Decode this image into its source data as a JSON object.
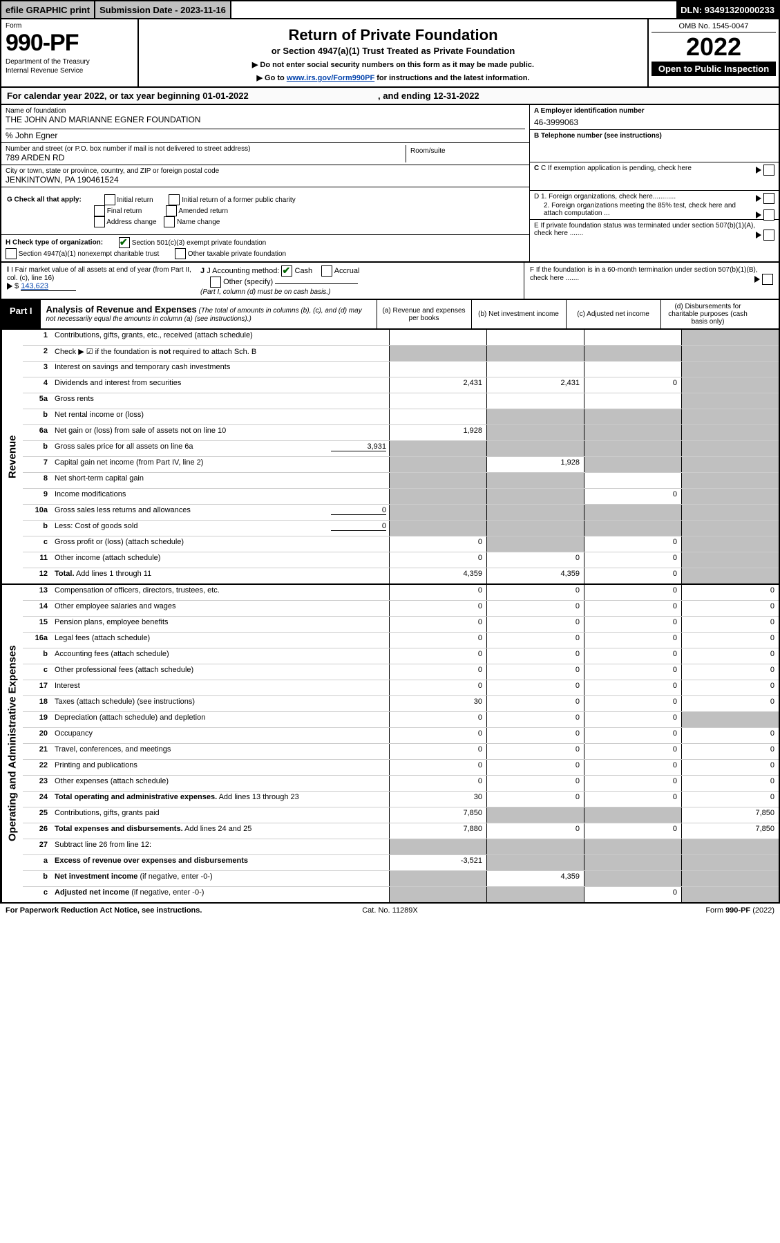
{
  "top": {
    "efile": "efile GRAPHIC print",
    "subdate_label": "Submission Date - 2023-11-16",
    "dln": "DLN: 93491320000233"
  },
  "header": {
    "form_label": "Form",
    "form_no": "990-PF",
    "dept": "Department of the Treasury",
    "irs": "Internal Revenue Service",
    "title": "Return of Private Foundation",
    "subtitle": "or Section 4947(a)(1) Trust Treated as Private Foundation",
    "instr1": "▶ Do not enter social security numbers on this form as it may be made public.",
    "instr2_pre": "▶ Go to ",
    "instr2_link": "www.irs.gov/Form990PF",
    "instr2_post": " for instructions and the latest information.",
    "omb": "OMB No. 1545-0047",
    "year": "2022",
    "open": "Open to Public Inspection"
  },
  "cal": {
    "text_pre": "For calendar year 2022, or tax year beginning ",
    "begin": "01-01-2022",
    "text_mid": " , and ending ",
    "end": "12-31-2022"
  },
  "entity": {
    "name_label": "Name of foundation",
    "name": "THE JOHN AND MARIANNE EGNER FOUNDATION",
    "care_of": "% John Egner",
    "addr_label": "Number and street (or P.O. box number if mail is not delivered to street address)",
    "addr": "789 ARDEN RD",
    "room_label": "Room/suite",
    "city_label": "City or town, state or province, country, and ZIP or foreign postal code",
    "city": "JENKINTOWN, PA  190461524",
    "ein_label": "A Employer identification number",
    "ein": "46-3999063",
    "phone_label": "B Telephone number (see instructions)",
    "c_label": "C If exemption application is pending, check here",
    "d1": "D 1. Foreign organizations, check here............",
    "d2": "2. Foreign organizations meeting the 85% test, check here and attach computation ...",
    "e": "E  If private foundation status was terminated under section 507(b)(1)(A), check here .......",
    "f": "F  If the foundation is in a 60-month termination under section 507(b)(1)(B), check here .......",
    "g_label": "G Check all that apply:",
    "g_opts": [
      "Initial return",
      "Initial return of a former public charity",
      "Final return",
      "Amended return",
      "Address change",
      "Name change"
    ],
    "h_label": "H Check type of organization:",
    "h_opt1": "Section 501(c)(3) exempt private foundation",
    "h_opt2": "Section 4947(a)(1) nonexempt charitable trust",
    "h_opt3": "Other taxable private foundation",
    "i_label": "I Fair market value of all assets at end of year (from Part II, col. (c), line 16)",
    "i_val": "143,623",
    "j_label": "J Accounting method:",
    "j_cash": "Cash",
    "j_accrual": "Accrual",
    "j_other": "Other (specify)",
    "j_note": "(Part I, column (d) must be on cash basis.)"
  },
  "part1": {
    "tab": "Part I",
    "title": "Analysis of Revenue and Expenses",
    "note": " (The total of amounts in columns (b), (c), and (d) may not necessarily equal the amounts in column (a) (see instructions).)",
    "cols": {
      "a": "(a) Revenue and expenses per books",
      "b": "(b) Net investment income",
      "c": "(c) Adjusted net income",
      "d": "(d) Disbursements for charitable purposes (cash basis only)"
    }
  },
  "sections": {
    "revenue": "Revenue",
    "expenses": "Operating and Administrative Expenses"
  },
  "rows": [
    {
      "ln": "1",
      "desc": "Contributions, gifts, grants, etc., received (attach schedule)",
      "a": "",
      "b": "",
      "c": "",
      "d": "",
      "d_shade": true,
      "c_shade": false
    },
    {
      "ln": "2",
      "desc": "Check ▶ ☑ if the foundation is <b>not</b> required to attach Sch. B",
      "a": "",
      "b": "",
      "c": "",
      "d": "",
      "all_shade_right": true
    },
    {
      "ln": "3",
      "desc": "Interest on savings and temporary cash investments",
      "a": "",
      "b": "",
      "c": "",
      "d": "",
      "d_shade": true
    },
    {
      "ln": "4",
      "desc": "Dividends and interest from securities",
      "a": "2,431",
      "b": "2,431",
      "c": "0",
      "d": "",
      "d_shade": true
    },
    {
      "ln": "5a",
      "desc": "Gross rents",
      "a": "",
      "b": "",
      "c": "",
      "d": "",
      "d_shade": true
    },
    {
      "ln": "b",
      "desc": "Net rental income or (loss)",
      "a": "",
      "b": "",
      "c": "",
      "d": "",
      "bcd_shade": true,
      "inline_box": ""
    },
    {
      "ln": "6a",
      "desc": "Net gain or (loss) from sale of assets not on line 10",
      "a": "1,928",
      "b": "",
      "c": "",
      "d": "",
      "bcd_shade": true
    },
    {
      "ln": "b",
      "desc": "Gross sales price for all assets on line 6a",
      "a": "",
      "b": "",
      "c": "",
      "d": "",
      "bcd_shade": true,
      "a_shade": true,
      "inline_val": "3,931"
    },
    {
      "ln": "7",
      "desc": "Capital gain net income (from Part IV, line 2)",
      "a": "",
      "b": "1,928",
      "c": "",
      "d": "",
      "a_shade": true,
      "c_shade": true,
      "d_shade": true
    },
    {
      "ln": "8",
      "desc": "Net short-term capital gain",
      "a": "",
      "b": "",
      "c": "",
      "d": "",
      "a_shade": true,
      "b_shade": true,
      "d_shade": true
    },
    {
      "ln": "9",
      "desc": "Income modifications",
      "a": "",
      "b": "",
      "c": "0",
      "d": "",
      "a_shade": true,
      "b_shade": true,
      "d_shade": true
    },
    {
      "ln": "10a",
      "desc": "Gross sales less returns and allowances",
      "a": "",
      "b": "",
      "c": "",
      "d": "",
      "bcd_shade": true,
      "a_shade": true,
      "inline_val": "0"
    },
    {
      "ln": "b",
      "desc": "Less: Cost of goods sold",
      "a": "",
      "b": "",
      "c": "",
      "d": "",
      "bcd_shade": true,
      "a_shade": true,
      "inline_val": "0"
    },
    {
      "ln": "c",
      "desc": "Gross profit or (loss) (attach schedule)",
      "a": "0",
      "b": "",
      "c": "0",
      "d": "",
      "b_shade": true,
      "d_shade": true
    },
    {
      "ln": "11",
      "desc": "Other income (attach schedule)",
      "a": "0",
      "b": "0",
      "c": "0",
      "d": "",
      "d_shade": true
    },
    {
      "ln": "12",
      "desc": "<b>Total.</b> Add lines 1 through 11",
      "a": "4,359",
      "b": "4,359",
      "c": "0",
      "d": "",
      "d_shade": true
    }
  ],
  "exp_rows": [
    {
      "ln": "13",
      "desc": "Compensation of officers, directors, trustees, etc.",
      "a": "0",
      "b": "0",
      "c": "0",
      "d": "0"
    },
    {
      "ln": "14",
      "desc": "Other employee salaries and wages",
      "a": "0",
      "b": "0",
      "c": "0",
      "d": "0"
    },
    {
      "ln": "15",
      "desc": "Pension plans, employee benefits",
      "a": "0",
      "b": "0",
      "c": "0",
      "d": "0"
    },
    {
      "ln": "16a",
      "desc": "Legal fees (attach schedule)",
      "a": "0",
      "b": "0",
      "c": "0",
      "d": "0"
    },
    {
      "ln": "b",
      "desc": "Accounting fees (attach schedule)",
      "a": "0",
      "b": "0",
      "c": "0",
      "d": "0"
    },
    {
      "ln": "c",
      "desc": "Other professional fees (attach schedule)",
      "a": "0",
      "b": "0",
      "c": "0",
      "d": "0"
    },
    {
      "ln": "17",
      "desc": "Interest",
      "a": "0",
      "b": "0",
      "c": "0",
      "d": "0"
    },
    {
      "ln": "18",
      "desc": "Taxes (attach schedule) (see instructions)",
      "a": "30",
      "b": "0",
      "c": "0",
      "d": "0"
    },
    {
      "ln": "19",
      "desc": "Depreciation (attach schedule) and depletion",
      "a": "0",
      "b": "0",
      "c": "0",
      "d": "",
      "d_shade": true
    },
    {
      "ln": "20",
      "desc": "Occupancy",
      "a": "0",
      "b": "0",
      "c": "0",
      "d": "0"
    },
    {
      "ln": "21",
      "desc": "Travel, conferences, and meetings",
      "a": "0",
      "b": "0",
      "c": "0",
      "d": "0"
    },
    {
      "ln": "22",
      "desc": "Printing and publications",
      "a": "0",
      "b": "0",
      "c": "0",
      "d": "0"
    },
    {
      "ln": "23",
      "desc": "Other expenses (attach schedule)",
      "a": "0",
      "b": "0",
      "c": "0",
      "d": "0"
    },
    {
      "ln": "24",
      "desc": "<b>Total operating and administrative expenses.</b> Add lines 13 through 23",
      "a": "30",
      "b": "0",
      "c": "0",
      "d": "0"
    },
    {
      "ln": "25",
      "desc": "Contributions, gifts, grants paid",
      "a": "7,850",
      "b": "",
      "c": "",
      "d": "7,850",
      "b_shade": true,
      "c_shade": true
    },
    {
      "ln": "26",
      "desc": "<b>Total expenses and disbursements.</b> Add lines 24 and 25",
      "a": "7,880",
      "b": "0",
      "c": "0",
      "d": "7,850"
    },
    {
      "ln": "27",
      "desc": "Subtract line 26 from line 12:",
      "a": "",
      "b": "",
      "c": "",
      "d": "",
      "all_shade": true
    },
    {
      "ln": "a",
      "desc": "<b>Excess of revenue over expenses and disbursements</b>",
      "a": "-3,521",
      "b": "",
      "c": "",
      "d": "",
      "bcd_shade": true
    },
    {
      "ln": "b",
      "desc": "<b>Net investment income</b> (if negative, enter -0-)",
      "a": "",
      "b": "4,359",
      "c": "",
      "d": "",
      "a_shade": true,
      "c_shade": true,
      "d_shade": true
    },
    {
      "ln": "c",
      "desc": "<b>Adjusted net income</b> (if negative, enter -0-)",
      "a": "",
      "b": "",
      "c": "0",
      "d": "",
      "a_shade": true,
      "b_shade": true,
      "d_shade": true
    }
  ],
  "footer": {
    "left": "For Paperwork Reduction Act Notice, see instructions.",
    "mid": "Cat. No. 11289X",
    "right": "Form 990-PF (2022)"
  }
}
